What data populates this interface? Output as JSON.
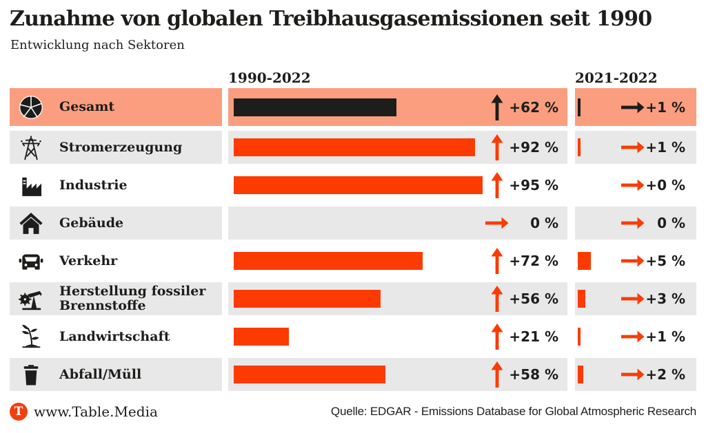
{
  "title": "Zunahme von globalen Treibhausgasemissionen seit 1990",
  "subtitle": "Entwicklung nach Sektoren",
  "columns": {
    "period_long": "1990-2022",
    "period_short": "2021-2022"
  },
  "colors": {
    "accent_orange": "#fb3b02",
    "highlight_row_bg": "#fb9e80",
    "alt_row_bg": "#e8e8e8",
    "total_bar_black": "#1d1d1b",
    "text": "#1d1d1b",
    "logo_bg": "#f0400f"
  },
  "rows": [
    {
      "label": "Gesamt",
      "icon": "pie-chart",
      "bg": "salmon",
      "highlight": true,
      "long": {
        "value": 62,
        "text": "+62 %",
        "trend": "up"
      },
      "short": {
        "value": 1,
        "text": "+1 %",
        "trend": "right"
      }
    },
    {
      "label": "Stromerzeugung",
      "icon": "power-tower",
      "bg": "gray",
      "highlight": false,
      "long": {
        "value": 92,
        "text": "+92 %",
        "trend": "up"
      },
      "short": {
        "value": 1,
        "text": "+1 %",
        "trend": "right"
      }
    },
    {
      "label": "Industrie",
      "icon": "factory",
      "bg": "white",
      "highlight": false,
      "long": {
        "value": 95,
        "text": "+95 %",
        "trend": "up"
      },
      "short": {
        "value": 0,
        "text": "+0 %",
        "trend": "right"
      }
    },
    {
      "label": "Gebäude",
      "icon": "house",
      "bg": "gray",
      "highlight": false,
      "long": {
        "value": 0,
        "text": "0 %",
        "trend": "right"
      },
      "short": {
        "value": 0,
        "text": "0 %",
        "trend": "right"
      }
    },
    {
      "label": "Verkehr",
      "icon": "car",
      "bg": "white",
      "highlight": false,
      "long": {
        "value": 72,
        "text": "+72 %",
        "trend": "up"
      },
      "short": {
        "value": 5,
        "text": "+5 %",
        "trend": "right"
      }
    },
    {
      "label": "Herstellung fossiler Brennstoffe",
      "icon": "oil-pump",
      "bg": "gray",
      "highlight": false,
      "long": {
        "value": 56,
        "text": "+56 %",
        "trend": "up"
      },
      "short": {
        "value": 3,
        "text": "+3 %",
        "trend": "right"
      }
    },
    {
      "label": "Landwirtschaft",
      "icon": "sprout",
      "bg": "white",
      "highlight": false,
      "long": {
        "value": 21,
        "text": "+21 %",
        "trend": "up"
      },
      "short": {
        "value": 1,
        "text": "+1 %",
        "trend": "right"
      }
    },
    {
      "label": "Abfall/Müll",
      "icon": "trash-bin",
      "bg": "gray",
      "highlight": false,
      "long": {
        "value": 58,
        "text": "+58 %",
        "trend": "up"
      },
      "short": {
        "value": 2,
        "text": "+2 %",
        "trend": "right"
      }
    }
  ],
  "footer": {
    "logo_letter": "T",
    "site": "www.Table.Media",
    "source": "Quelle: EDGAR - Emissions Database for Global Atmospheric Research"
  },
  "chart_data": {
    "type": "bar",
    "title": "Zunahme von globalen Treibhausgasemissionen seit 1990",
    "subtitle": "Entwicklung nach Sektoren",
    "categories": [
      "Gesamt",
      "Stromerzeugung",
      "Industrie",
      "Gebäude",
      "Verkehr",
      "Herstellung fossiler Brennstoffe",
      "Landwirtschaft",
      "Abfall/Müll"
    ],
    "series": [
      {
        "name": "1990-2022",
        "unit": "%",
        "values": [
          62,
          92,
          95,
          0,
          72,
          56,
          21,
          58
        ],
        "labels": [
          "+62 %",
          "+92 %",
          "+95 %",
          "0 %",
          "+72 %",
          "+56 %",
          "+21 %",
          "+58 %"
        ]
      },
      {
        "name": "2021-2022",
        "unit": "%",
        "values": [
          1,
          1,
          0,
          0,
          5,
          3,
          1,
          2
        ],
        "labels": [
          "+1 %",
          "+1 %",
          "+0 %",
          "0 %",
          "+5 %",
          "+3 %",
          "+1 %",
          "+2 %"
        ]
      }
    ],
    "orientation": "horizontal",
    "xlim": [
      0,
      130
    ],
    "grid": false,
    "legend_position": "column-headers",
    "source": "Quelle: EDGAR - Emissions Database for Global Atmospheric Research"
  }
}
